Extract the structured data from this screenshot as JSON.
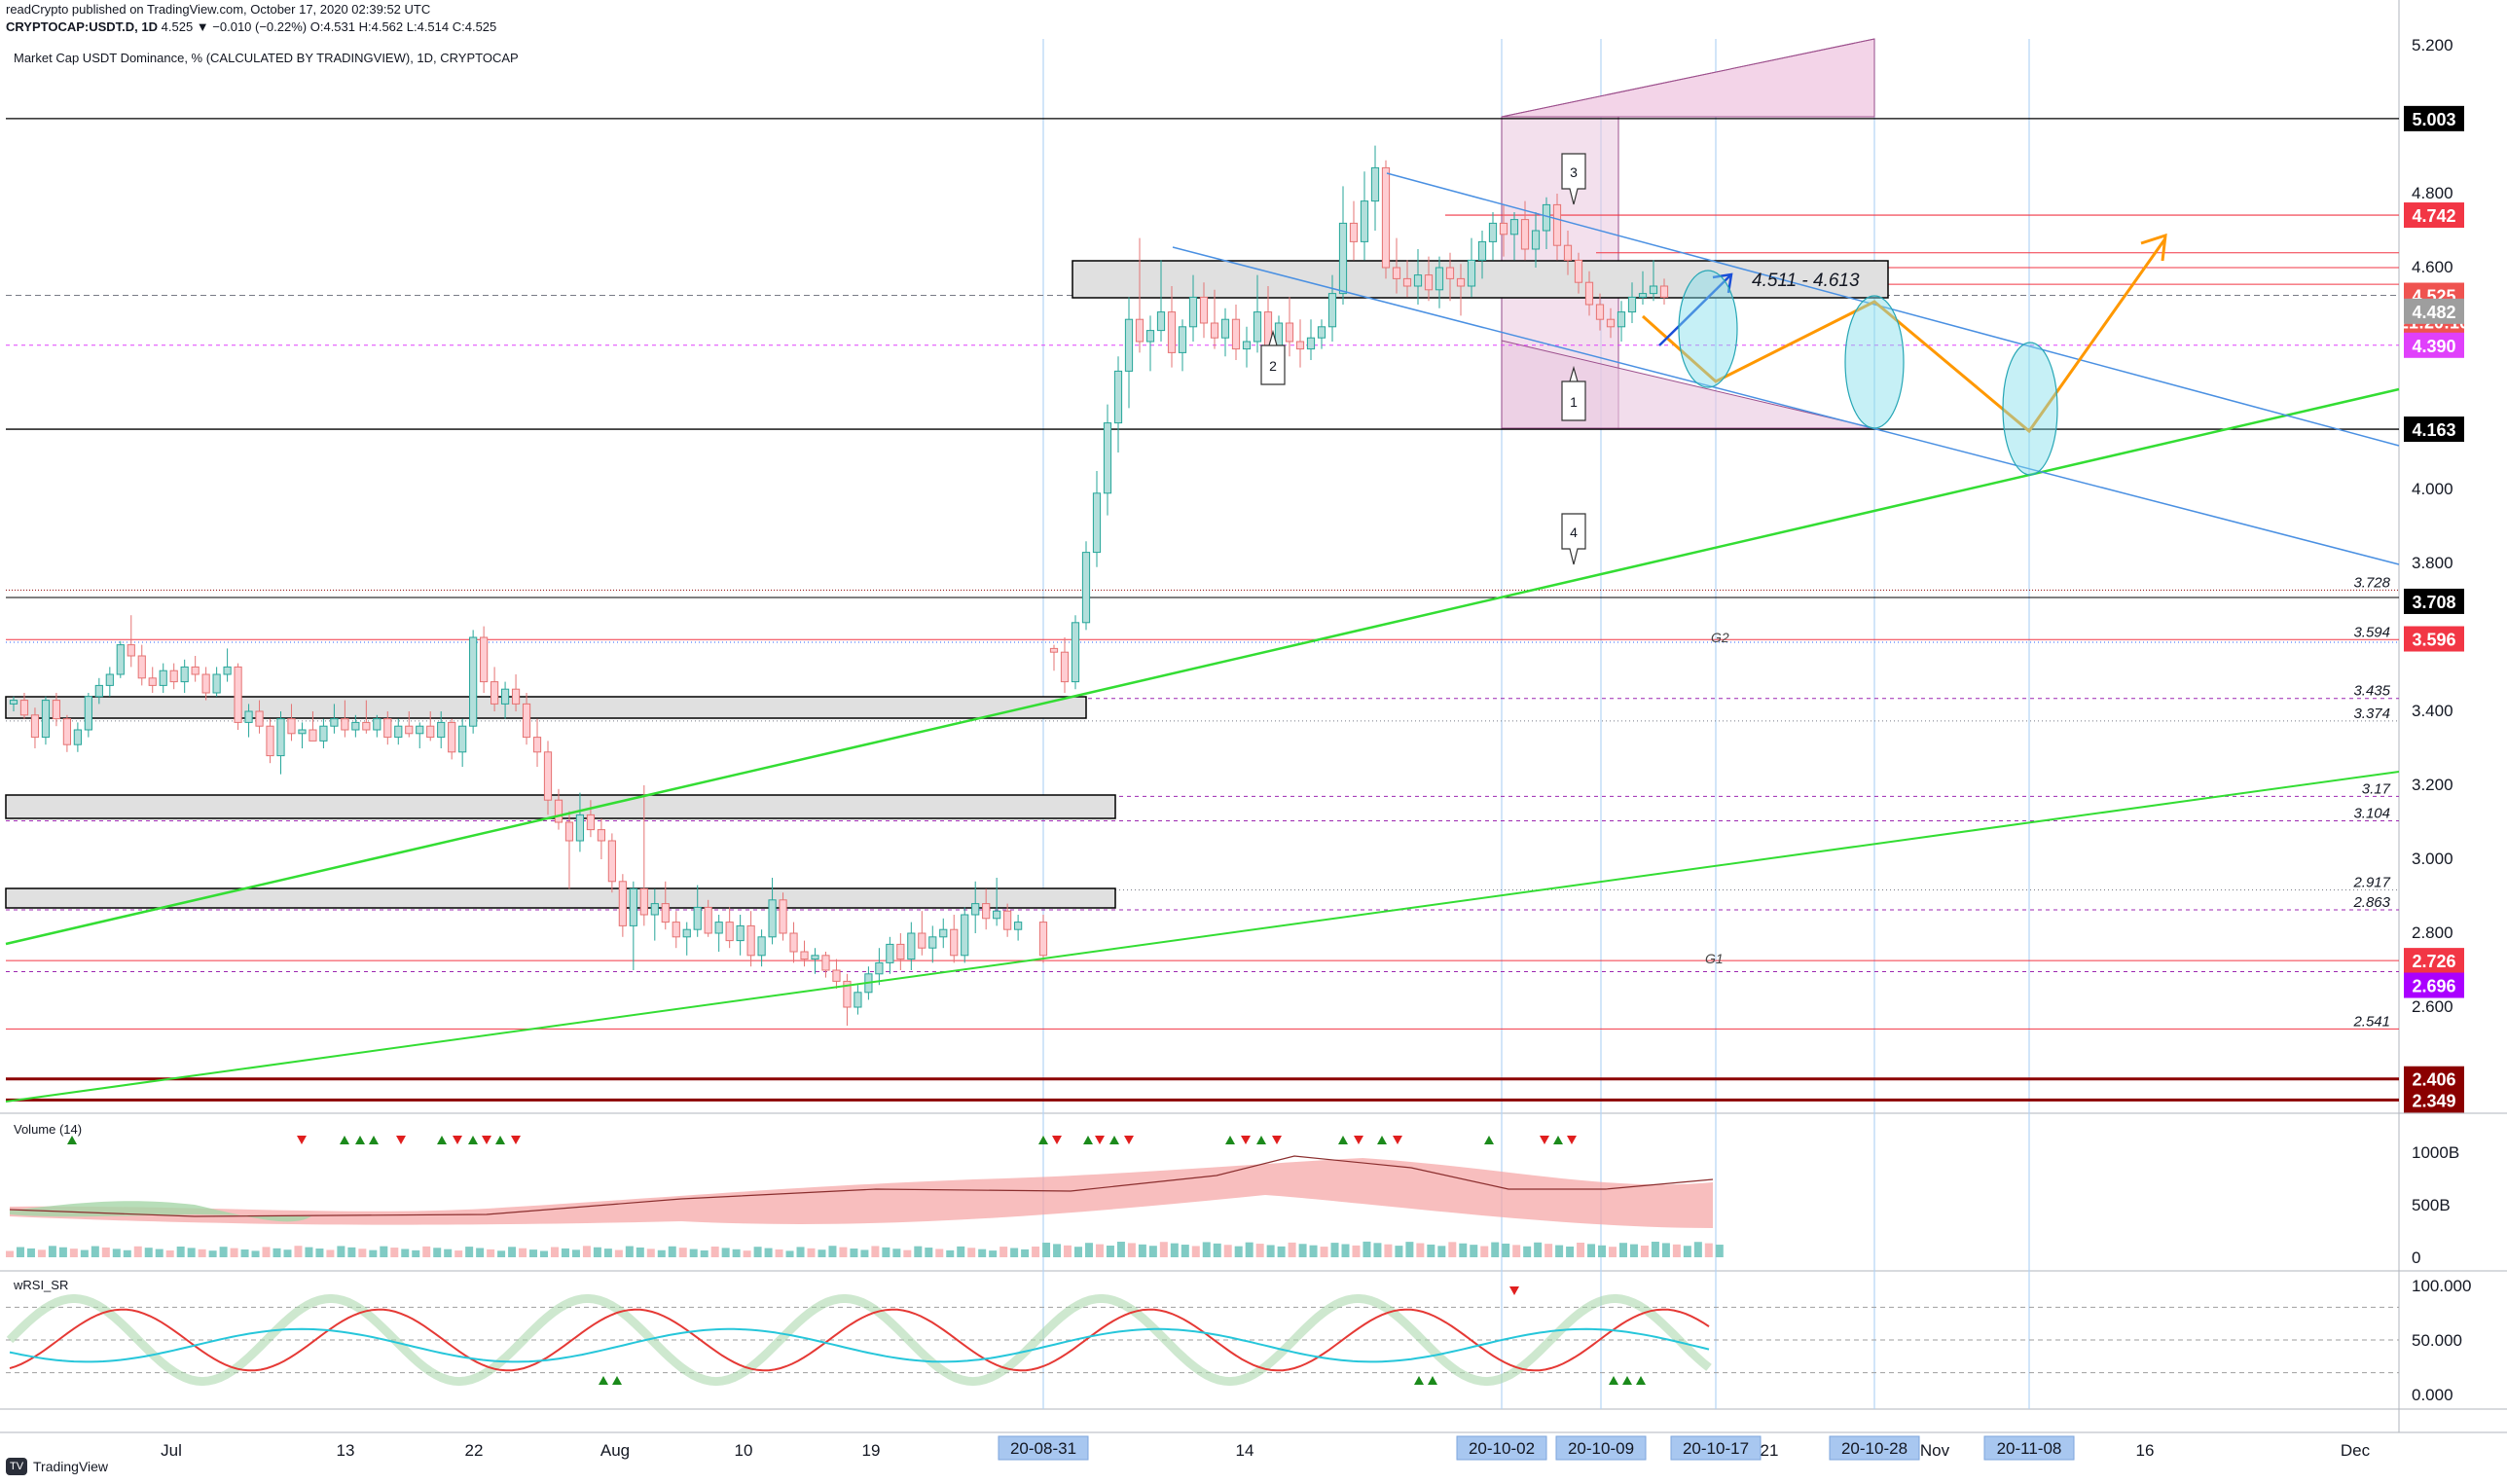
{
  "header": {
    "line1": "readCrypto published on TradingView.com, October 17, 2020 02:39:52 UTC",
    "line2_symbol": "CRYPTOCAP:USDT.D, 1D",
    "line2_values": "4.525  ▼ −0.010 (−0.22%)  O:4.531  H:4.562  L:4.514  C:4.525",
    "subtitle": "Market Cap USDT Dominance, % (CALCULATED BY TRADINGVIEW), 1D, CRYPTOCAP"
  },
  "footer": {
    "logo": "TradingView"
  },
  "colors": {
    "up": "#26a69a",
    "down": "#ef5350",
    "axis_label_bg": "#000000"
  },
  "chart_data": {
    "type": "candlestick",
    "x_axis": {
      "ticks": [
        "Jul",
        "13",
        "22",
        "Aug",
        "10",
        "19",
        "14",
        "21",
        "Nov",
        "16",
        "Dec"
      ],
      "highlighted_dates": [
        "20-08-31",
        "20-10-02",
        "20-10-09",
        "20-10-17",
        "20-10-28",
        "20-11-08"
      ]
    },
    "price_axis": {
      "ticks": [
        "5.200",
        "4.800",
        "4.600",
        "4.000",
        "3.800",
        "3.400",
        "3.200",
        "3.000",
        "2.800",
        "2.600"
      ],
      "tick_values": [
        5.2,
        4.8,
        4.6,
        4.0,
        3.8,
        3.4,
        3.2,
        3.0,
        2.8,
        2.6
      ],
      "range": [
        2.33,
        5.22
      ],
      "label_boxes": [
        {
          "text": "5.003",
          "value": 5.003,
          "bg": "#000000"
        },
        {
          "text": "4.742",
          "value": 4.742,
          "bg": "#f23645"
        },
        {
          "text": "4.525",
          "value": 4.525,
          "bg": "#ef5350"
        },
        {
          "text": "21:20:10",
          "value": 4.525,
          "bg": "#ef5350"
        },
        {
          "text": "4.482",
          "value": 4.482,
          "bg": "#9e9e9e"
        },
        {
          "text": "4.390",
          "value": 4.39,
          "bg": "#e040fb"
        },
        {
          "text": "4.163",
          "value": 4.163,
          "bg": "#000000"
        },
        {
          "text": "3.708",
          "value": 3.708,
          "bg": "#000000"
        },
        {
          "text": "3.596",
          "value": 3.596,
          "bg": "#f23645"
        },
        {
          "text": "2.726",
          "value": 2.726,
          "bg": "#f23645"
        },
        {
          "text": "2.696",
          "value": 2.696,
          "bg": "#aa00ff"
        },
        {
          "text": "2.406",
          "value": 2.406,
          "bg": "#8b0000"
        },
        {
          "text": "2.349",
          "value": 2.349,
          "bg": "#8b0000"
        }
      ]
    },
    "level_labels": [
      {
        "text": "3.728",
        "value": 3.728
      },
      {
        "text": "3.594",
        "value": 3.594
      },
      {
        "text": "3.435",
        "value": 3.435
      },
      {
        "text": "3.374",
        "value": 3.374
      },
      {
        "text": "3.17",
        "value": 3.17
      },
      {
        "text": "3.104",
        "value": 3.104
      },
      {
        "text": "2.917",
        "value": 2.917
      },
      {
        "text": "2.863",
        "value": 2.863
      },
      {
        "text": "2.541",
        "value": 2.541
      }
    ],
    "annotations": {
      "range_box": "4.511 - 4.613",
      "g2": "G2",
      "g1": "G1",
      "callouts": [
        "1",
        "2",
        "3",
        "4"
      ]
    },
    "candles": [
      [
        3.42,
        3.44,
        3.4,
        3.43
      ],
      [
        3.43,
        3.45,
        3.38,
        3.39
      ],
      [
        3.39,
        3.41,
        3.3,
        3.33
      ],
      [
        3.33,
        3.44,
        3.31,
        3.43
      ],
      [
        3.43,
        3.45,
        3.36,
        3.38
      ],
      [
        3.38,
        3.39,
        3.29,
        3.31
      ],
      [
        3.31,
        3.37,
        3.29,
        3.35
      ],
      [
        3.35,
        3.45,
        3.33,
        3.44
      ],
      [
        3.44,
        3.49,
        3.42,
        3.47
      ],
      [
        3.47,
        3.52,
        3.44,
        3.5
      ],
      [
        3.5,
        3.59,
        3.49,
        3.58
      ],
      [
        3.58,
        3.66,
        3.52,
        3.55
      ],
      [
        3.55,
        3.58,
        3.47,
        3.49
      ],
      [
        3.49,
        3.52,
        3.45,
        3.47
      ],
      [
        3.47,
        3.53,
        3.45,
        3.51
      ],
      [
        3.51,
        3.53,
        3.46,
        3.48
      ],
      [
        3.48,
        3.54,
        3.45,
        3.52
      ],
      [
        3.52,
        3.55,
        3.48,
        3.5
      ],
      [
        3.5,
        3.52,
        3.43,
        3.45
      ],
      [
        3.45,
        3.52,
        3.44,
        3.5
      ],
      [
        3.5,
        3.57,
        3.48,
        3.52
      ],
      [
        3.52,
        3.53,
        3.35,
        3.37
      ],
      [
        3.37,
        3.42,
        3.33,
        3.4
      ],
      [
        3.4,
        3.43,
        3.34,
        3.36
      ],
      [
        3.36,
        3.38,
        3.26,
        3.28
      ],
      [
        3.28,
        3.4,
        3.23,
        3.38
      ],
      [
        3.38,
        3.42,
        3.32,
        3.34
      ],
      [
        3.34,
        3.37,
        3.3,
        3.35
      ],
      [
        3.35,
        3.4,
        3.32,
        3.32
      ],
      [
        3.32,
        3.38,
        3.3,
        3.36
      ],
      [
        3.36,
        3.42,
        3.34,
        3.38
      ],
      [
        3.38,
        3.43,
        3.33,
        3.35
      ],
      [
        3.35,
        3.39,
        3.33,
        3.37
      ],
      [
        3.37,
        3.43,
        3.34,
        3.35
      ],
      [
        3.35,
        3.39,
        3.33,
        3.38
      ],
      [
        3.38,
        3.4,
        3.31,
        3.33
      ],
      [
        3.33,
        3.38,
        3.31,
        3.36
      ],
      [
        3.36,
        3.4,
        3.33,
        3.34
      ],
      [
        3.34,
        3.37,
        3.3,
        3.36
      ],
      [
        3.36,
        3.4,
        3.32,
        3.33
      ],
      [
        3.33,
        3.4,
        3.3,
        3.37
      ],
      [
        3.37,
        3.38,
        3.27,
        3.29
      ],
      [
        3.29,
        3.38,
        3.25,
        3.36
      ],
      [
        3.36,
        3.62,
        3.34,
        3.6
      ],
      [
        3.6,
        3.63,
        3.45,
        3.48
      ],
      [
        3.48,
        3.52,
        3.4,
        3.42
      ],
      [
        3.42,
        3.48,
        3.38,
        3.46
      ],
      [
        3.46,
        3.5,
        3.4,
        3.42
      ],
      [
        3.42,
        3.45,
        3.31,
        3.33
      ],
      [
        3.33,
        3.38,
        3.25,
        3.29
      ],
      [
        3.29,
        3.32,
        3.12,
        3.16
      ],
      [
        3.16,
        3.19,
        3.08,
        3.1
      ],
      [
        3.1,
        3.13,
        2.92,
        3.05
      ],
      [
        3.05,
        3.18,
        3.02,
        3.12
      ],
      [
        3.12,
        3.16,
        3.06,
        3.08
      ],
      [
        3.08,
        3.11,
        3.0,
        3.05
      ],
      [
        3.05,
        3.07,
        2.91,
        2.94
      ],
      [
        2.94,
        2.96,
        2.79,
        2.82
      ],
      [
        2.82,
        2.94,
        2.7,
        2.92
      ],
      [
        2.92,
        3.2,
        2.82,
        2.85
      ],
      [
        2.85,
        2.92,
        2.78,
        2.88
      ],
      [
        2.88,
        2.94,
        2.81,
        2.83
      ],
      [
        2.83,
        2.86,
        2.76,
        2.79
      ],
      [
        2.79,
        2.83,
        2.74,
        2.81
      ],
      [
        2.81,
        2.93,
        2.79,
        2.87
      ],
      [
        2.87,
        2.89,
        2.79,
        2.8
      ],
      [
        2.8,
        2.85,
        2.75,
        2.83
      ],
      [
        2.83,
        2.87,
        2.76,
        2.78
      ],
      [
        2.78,
        2.85,
        2.74,
        2.82
      ],
      [
        2.82,
        2.86,
        2.71,
        2.74
      ],
      [
        2.74,
        2.81,
        2.71,
        2.79
      ],
      [
        2.79,
        2.95,
        2.77,
        2.89
      ],
      [
        2.89,
        2.91,
        2.78,
        2.8
      ],
      [
        2.8,
        2.83,
        2.72,
        2.75
      ],
      [
        2.75,
        2.78,
        2.71,
        2.73
      ],
      [
        2.73,
        2.76,
        2.69,
        2.74
      ],
      [
        2.74,
        2.75,
        2.68,
        2.7
      ],
      [
        2.7,
        2.73,
        2.65,
        2.67
      ],
      [
        2.67,
        2.69,
        2.55,
        2.6
      ],
      [
        2.6,
        2.66,
        2.58,
        2.64
      ],
      [
        2.64,
        2.71,
        2.62,
        2.69
      ],
      [
        2.69,
        2.76,
        2.66,
        2.72
      ],
      [
        2.72,
        2.79,
        2.69,
        2.77
      ],
      [
        2.77,
        2.8,
        2.7,
        2.73
      ],
      [
        2.73,
        2.83,
        2.7,
        2.8
      ],
      [
        2.8,
        2.86,
        2.74,
        2.76
      ],
      [
        2.76,
        2.82,
        2.72,
        2.79
      ],
      [
        2.79,
        2.84,
        2.76,
        2.81
      ],
      [
        2.81,
        2.85,
        2.72,
        2.74
      ],
      [
        2.74,
        2.87,
        2.72,
        2.85
      ],
      [
        2.85,
        2.94,
        2.8,
        2.88
      ],
      [
        2.88,
        2.92,
        2.81,
        2.84
      ],
      [
        2.84,
        2.95,
        2.82,
        2.86
      ],
      [
        2.86,
        2.88,
        2.79,
        2.81
      ],
      [
        2.81,
        2.85,
        2.78,
        2.83
      ],
      [
        2.83,
        2.85,
        2.72,
        2.74
      ],
      [
        3.57,
        3.58,
        3.51,
        3.56
      ],
      [
        3.56,
        3.6,
        3.45,
        3.48
      ],
      [
        3.48,
        3.66,
        3.46,
        3.64
      ],
      [
        3.64,
        3.86,
        3.62,
        3.83
      ],
      [
        3.83,
        4.05,
        3.79,
        3.99
      ],
      [
        3.99,
        4.23,
        3.93,
        4.18
      ],
      [
        4.18,
        4.36,
        4.1,
        4.32
      ],
      [
        4.32,
        4.52,
        4.22,
        4.46
      ],
      [
        4.46,
        4.68,
        4.37,
        4.4
      ],
      [
        4.4,
        4.47,
        4.32,
        4.43
      ],
      [
        4.43,
        4.62,
        4.4,
        4.48
      ],
      [
        4.48,
        4.55,
        4.33,
        4.37
      ],
      [
        4.37,
        4.46,
        4.32,
        4.44
      ],
      [
        4.44,
        4.58,
        4.4,
        4.52
      ],
      [
        4.52,
        4.56,
        4.41,
        4.45
      ],
      [
        4.45,
        4.54,
        4.38,
        4.41
      ],
      [
        4.41,
        4.49,
        4.36,
        4.46
      ],
      [
        4.46,
        4.5,
        4.35,
        4.38
      ],
      [
        4.38,
        4.44,
        4.33,
        4.4
      ],
      [
        4.4,
        4.58,
        4.37,
        4.48
      ],
      [
        4.48,
        4.55,
        4.31,
        4.35
      ],
      [
        4.35,
        4.47,
        4.31,
        4.45
      ],
      [
        4.45,
        4.52,
        4.36,
        4.4
      ],
      [
        4.4,
        4.46,
        4.33,
        4.38
      ],
      [
        4.38,
        4.46,
        4.35,
        4.41
      ],
      [
        4.41,
        4.46,
        4.38,
        4.44
      ],
      [
        4.44,
        4.58,
        4.4,
        4.53
      ],
      [
        4.53,
        4.82,
        4.5,
        4.72
      ],
      [
        4.72,
        4.78,
        4.62,
        4.67
      ],
      [
        4.67,
        4.86,
        4.62,
        4.78
      ],
      [
        4.78,
        4.93,
        4.7,
        4.87
      ],
      [
        4.87,
        4.89,
        4.57,
        4.6
      ],
      [
        4.6,
        4.68,
        4.53,
        4.57
      ],
      [
        4.57,
        4.62,
        4.52,
        4.55
      ],
      [
        4.55,
        4.65,
        4.5,
        4.58
      ],
      [
        4.58,
        4.63,
        4.51,
        4.54
      ],
      [
        4.54,
        4.63,
        4.49,
        4.6
      ],
      [
        4.6,
        4.64,
        4.51,
        4.57
      ],
      [
        4.57,
        4.61,
        4.47,
        4.55
      ],
      [
        4.55,
        4.68,
        4.52,
        4.62
      ],
      [
        4.62,
        4.7,
        4.57,
        4.67
      ],
      [
        4.67,
        4.75,
        4.62,
        4.72
      ],
      [
        4.72,
        4.77,
        4.63,
        4.69
      ],
      [
        4.69,
        4.75,
        4.62,
        4.73
      ],
      [
        4.73,
        4.78,
        4.62,
        4.65
      ],
      [
        4.65,
        4.75,
        4.6,
        4.7
      ],
      [
        4.7,
        4.79,
        4.65,
        4.77
      ],
      [
        4.77,
        4.8,
        4.62,
        4.66
      ],
      [
        4.66,
        4.7,
        4.58,
        4.62
      ],
      [
        4.62,
        4.64,
        4.53,
        4.56
      ],
      [
        4.56,
        4.59,
        4.47,
        4.5
      ],
      [
        4.5,
        4.53,
        4.43,
        4.46
      ],
      [
        4.46,
        4.49,
        4.41,
        4.44
      ],
      [
        4.44,
        4.51,
        4.4,
        4.48
      ],
      [
        4.48,
        4.56,
        4.45,
        4.52
      ],
      [
        4.52,
        4.59,
        4.5,
        4.53
      ],
      [
        4.53,
        4.62,
        4.51,
        4.55
      ],
      [
        4.55,
        4.57,
        4.5,
        4.52
      ]
    ],
    "volume_panel": {
      "title": "Volume (14)",
      "ticks": [
        "1000B",
        "500B",
        "0"
      ],
      "tick_values": [
        1000,
        500,
        0
      ],
      "range": [
        0,
        1200
      ]
    },
    "rsi_panel": {
      "title": "wRSI_SR",
      "ticks": [
        "100.000",
        "50.000",
        "0.000"
      ],
      "tick_values": [
        100,
        50,
        0
      ],
      "range": [
        -5,
        105
      ]
    }
  }
}
